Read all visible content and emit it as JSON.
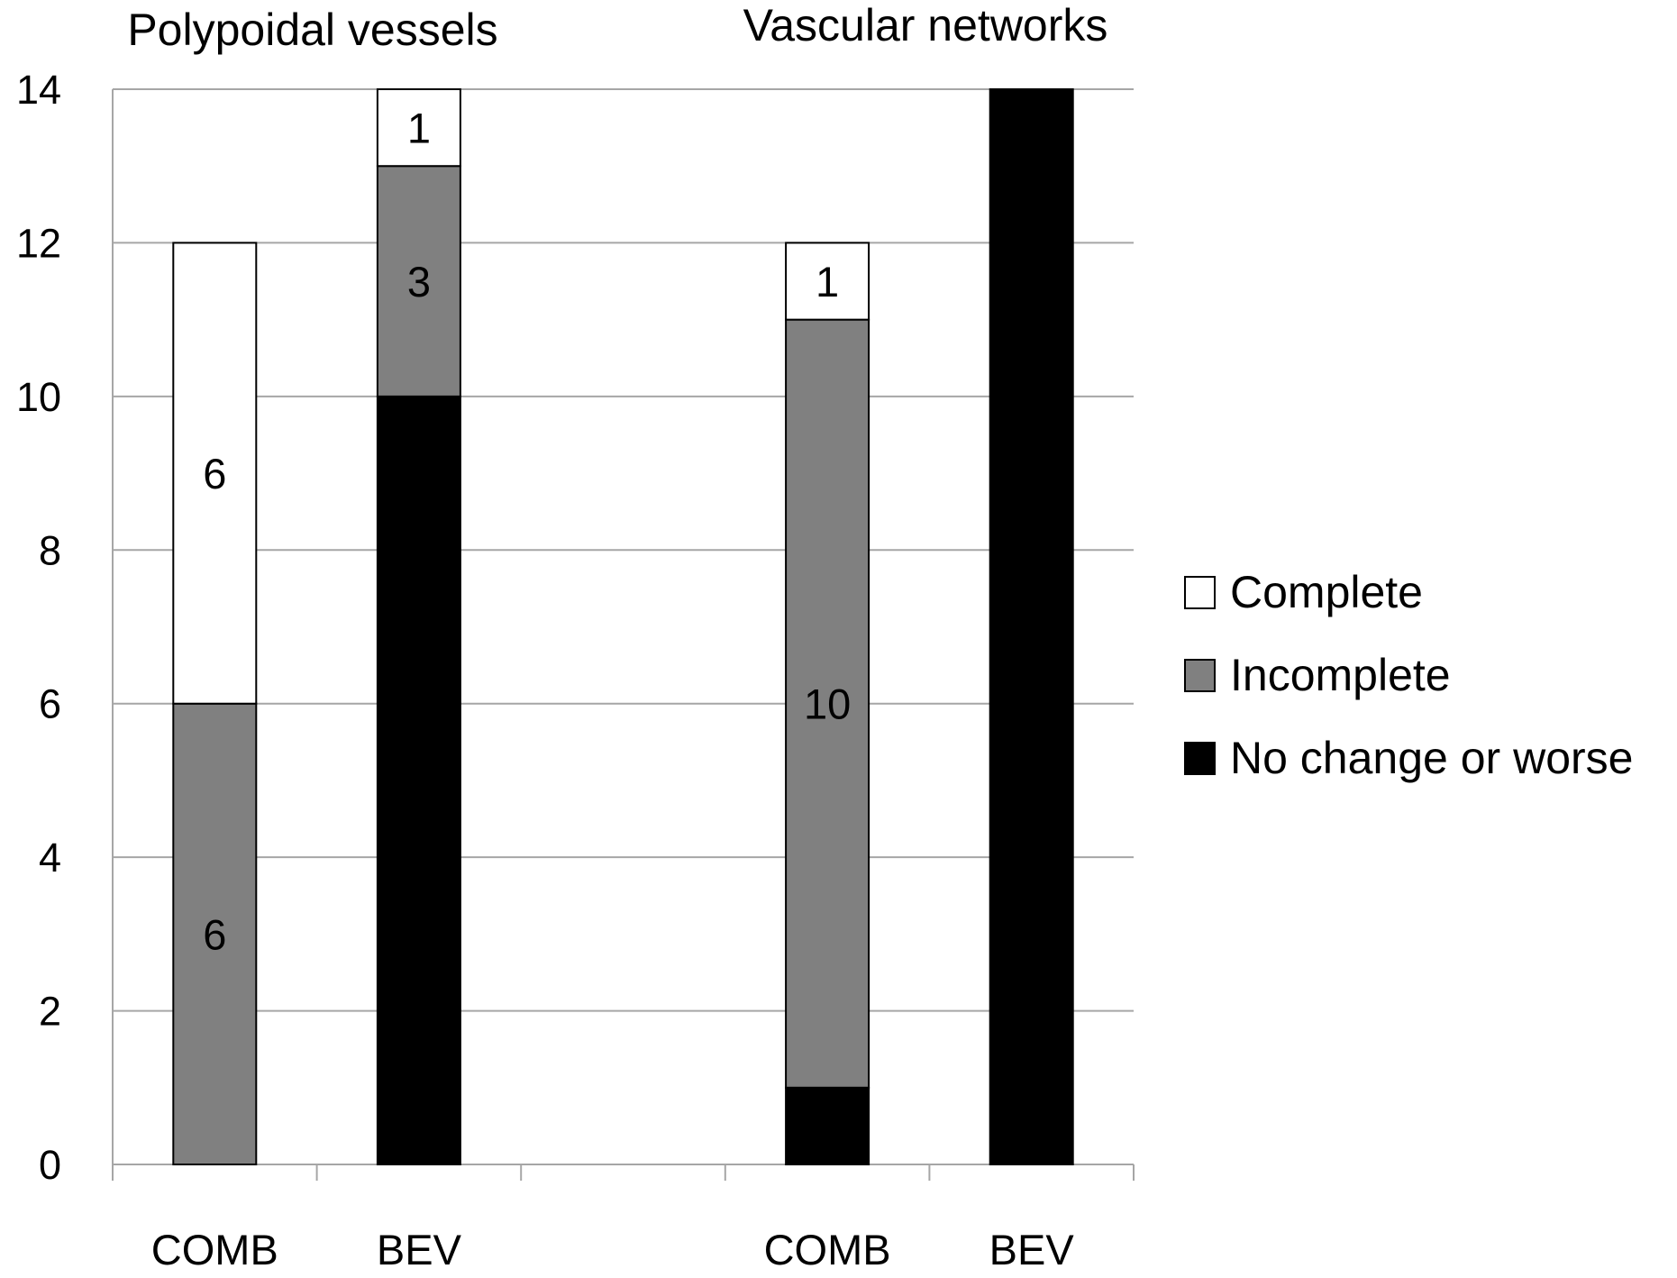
{
  "chart_data": {
    "type": "bar",
    "stacked": true,
    "group_titles": [
      "Polypoidal vessels",
      "Vascular networks"
    ],
    "categories": [
      "COMB",
      "BEV",
      "",
      "COMB",
      "BEV"
    ],
    "series": [
      {
        "name": "No change or worse",
        "color": "#000000",
        "values": [
          0,
          10,
          null,
          1,
          14
        ]
      },
      {
        "name": "Incomplete",
        "color": "#808080",
        "values": [
          6,
          3,
          null,
          10,
          0
        ]
      },
      {
        "name": "Complete",
        "color": "#ffffff",
        "values": [
          6,
          1,
          null,
          1,
          0
        ]
      }
    ],
    "yticks": [
      "0",
      "2",
      "4",
      "6",
      "8",
      "10",
      "12",
      "14"
    ],
    "ylim": [
      0,
      14
    ],
    "xlabel": "",
    "ylabel": "",
    "grid": true,
    "legend_position": "right"
  }
}
